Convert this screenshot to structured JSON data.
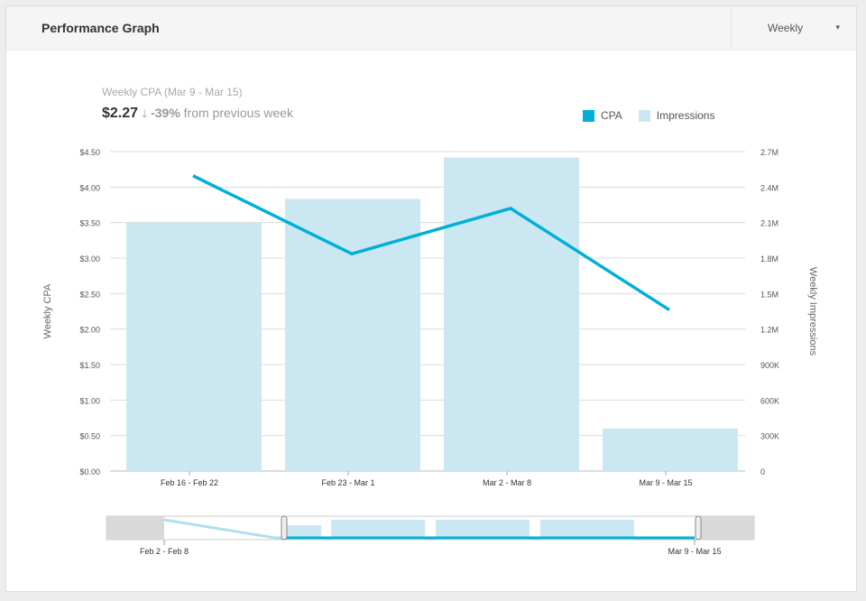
{
  "header": {
    "title": "Performance Graph",
    "period_select": "Weekly",
    "chevron": "▾"
  },
  "summary": {
    "subtitle": "Weekly CPA (Mar 9 - Mar 15)",
    "value": "$2.27",
    "arrow": "🡓",
    "change": "-39%",
    "change_suffix": " from previous week"
  },
  "colors": {
    "cpa": "#00b0d8",
    "impressions": "#cbe8f2"
  },
  "chart_data": {
    "type": "bar",
    "categories": [
      "Feb 16 - Feb 22",
      "Feb 23 - Mar 1",
      "Mar 2 - Mar 8",
      "Mar 9 - Mar 15"
    ],
    "series": [
      {
        "name": "CPA",
        "type": "line",
        "axis": "left",
        "values": [
          4.16,
          3.06,
          3.7,
          2.27
        ]
      },
      {
        "name": "Impressions",
        "type": "bar",
        "axis": "right",
        "values": [
          2100000,
          2300000,
          2650000,
          360000
        ]
      }
    ],
    "ylabel": "Weekly CPA",
    "y2label": "Weekly Impressions",
    "ylim": [
      0,
      4.5
    ],
    "y2lim": [
      0,
      2700000
    ],
    "yticks": [
      "$0.00",
      "$0.50",
      "$1.00",
      "$1.50",
      "$2.00",
      "$2.50",
      "$3.00",
      "$3.50",
      "$4.00",
      "$4.50"
    ],
    "y2ticks": [
      "0",
      "300K",
      "600K",
      "900K",
      "1.2M",
      "1.5M",
      "1.8M",
      "2.1M",
      "2.4M",
      "2.7M"
    ],
    "legend": "top-right",
    "grid": true
  },
  "navigator": {
    "start_label": "Feb 2 - Feb 8",
    "end_label": "Mar 9 - Mar 15"
  }
}
